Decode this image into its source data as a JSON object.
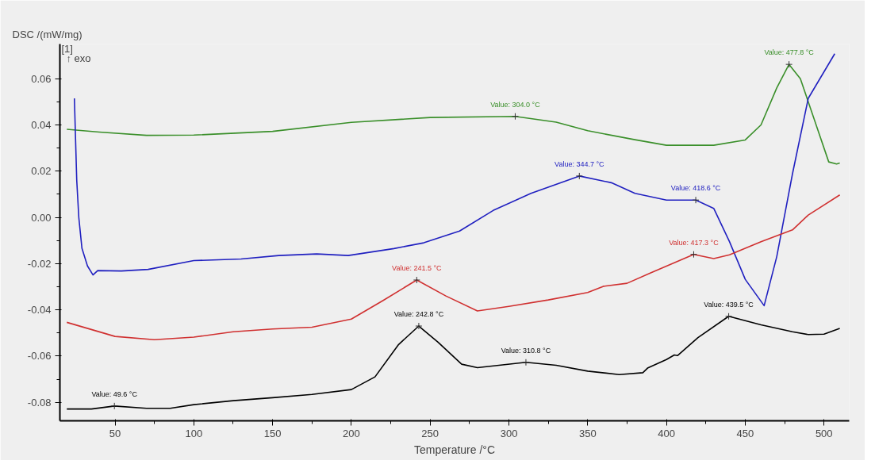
{
  "chart_data": {
    "type": "line",
    "ylabel": "DSC /(mW/mg)",
    "xlabel": "Temperature /°C",
    "xlim": [
      15,
      516
    ],
    "ylim": [
      -0.088,
      0.075
    ],
    "xticks": [
      50,
      100,
      150,
      200,
      250,
      300,
      350,
      400,
      450,
      500
    ],
    "yticks": [
      -0.08,
      -0.06,
      -0.04,
      -0.02,
      {
        "value": 0,
        "label": "0.00"
      },
      0.02,
      0.04,
      0.06
    ],
    "grid": false,
    "line_style": "solid",
    "marker": "none",
    "series": [
      {
        "color": "#3a8f2a",
        "x": [
          19.4,
          40,
          70,
          100,
          150,
          200,
          250,
          304,
          330,
          350,
          380,
          400,
          430,
          450,
          460,
          470,
          477.8,
          485,
          495,
          503,
          508,
          510
        ],
        "values": [
          0.0381,
          0.0369,
          0.0355,
          0.0356,
          0.0372,
          0.0411,
          0.0432,
          0.0437,
          0.0412,
          0.0375,
          0.0336,
          0.0312,
          0.0312,
          0.0335,
          0.04,
          0.056,
          0.0662,
          0.06,
          0.04,
          0.024,
          0.0231,
          0.0235
        ]
      },
      {
        "color": "#2020c0",
        "x": [
          24.2,
          25.7,
          27,
          29,
          32.5,
          36,
          39,
          54,
          71,
          100,
          130,
          154,
          178,
          198,
          227,
          246,
          268.7,
          290,
          314,
          344.7,
          365,
          380,
          400,
          418.6,
          430,
          440,
          450,
          462,
          470,
          480,
          490,
          506.8
        ],
        "values": [
          0.0515,
          0.016,
          0.0,
          -0.0134,
          -0.021,
          -0.0249,
          -0.023,
          -0.0232,
          -0.0225,
          -0.0187,
          -0.018,
          -0.0165,
          -0.0158,
          -0.0165,
          -0.0135,
          -0.011,
          -0.0059,
          0.003,
          0.0104,
          0.0179,
          0.015,
          0.0104,
          0.0075,
          0.0075,
          0.0039,
          -0.0105,
          -0.0268,
          -0.0382,
          -0.017,
          0.0189,
          0.0515,
          0.0708
        ]
      },
      {
        "color": "#d03030",
        "x": [
          19.4,
          50,
          75,
          100,
          125,
          150,
          175,
          200,
          220,
          241.5,
          260,
          280,
          300,
          325,
          350,
          360,
          375,
          390,
          417.3,
          430,
          440,
          460,
          480,
          490,
          510
        ],
        "values": [
          -0.0454,
          -0.0515,
          -0.0529,
          -0.0518,
          -0.0495,
          -0.0483,
          -0.0475,
          -0.044,
          -0.036,
          -0.0271,
          -0.034,
          -0.0405,
          -0.0385,
          -0.0357,
          -0.0325,
          -0.0298,
          -0.0285,
          -0.024,
          -0.016,
          -0.0178,
          -0.0162,
          -0.0105,
          -0.0054,
          0.001,
          0.0097
        ]
      },
      {
        "color": "#000000",
        "x": [
          19.4,
          35,
          49.6,
          70,
          85,
          100,
          125,
          150,
          175,
          200,
          215,
          230,
          242.8,
          255,
          270,
          280,
          310.8,
          330,
          350,
          370,
          385,
          388,
          400,
          405,
          407,
          420,
          439.5,
          460,
          480,
          490,
          500,
          510
        ],
        "values": [
          -0.0829,
          -0.0829,
          -0.0816,
          -0.0826,
          -0.0826,
          -0.081,
          -0.0793,
          -0.078,
          -0.0766,
          -0.0745,
          -0.069,
          -0.055,
          -0.047,
          -0.054,
          -0.0635,
          -0.065,
          -0.0627,
          -0.064,
          -0.0665,
          -0.068,
          -0.0672,
          -0.0652,
          -0.0615,
          -0.0595,
          -0.0598,
          -0.052,
          -0.0428,
          -0.0465,
          -0.0495,
          -0.0507,
          -0.0505,
          -0.048
        ]
      }
    ],
    "annotations": [
      "[1]",
      "↑ exo",
      {
        "text": "Value: 304.0 °C",
        "x": 304.0,
        "y": 0.0437
      },
      {
        "text": "Value: 477.8 °C",
        "x": 477.8,
        "y": 0.0662
      },
      {
        "text": "Value: 344.7 °C",
        "x": 344.7,
        "y": 0.0179
      },
      {
        "text": "Value: 418.6 °C",
        "x": 418.6,
        "y": 0.0075
      },
      {
        "text": "Value: 241.5 °C",
        "x": 241.5,
        "y": -0.0271
      },
      {
        "text": "Value: 417.3 °C",
        "x": 417.3,
        "y": -0.016
      },
      {
        "text": "Value: 242.8 °C",
        "x": 242.8,
        "y": -0.047
      },
      {
        "text": "Value: 310.8 °C",
        "x": 310.8,
        "y": -0.0627
      },
      {
        "text": "Value: 439.5 °C",
        "x": 439.5,
        "y": -0.0428
      },
      {
        "text": "Value: 49.6 °C",
        "x": 49.6,
        "y": -0.0816
      }
    ]
  }
}
